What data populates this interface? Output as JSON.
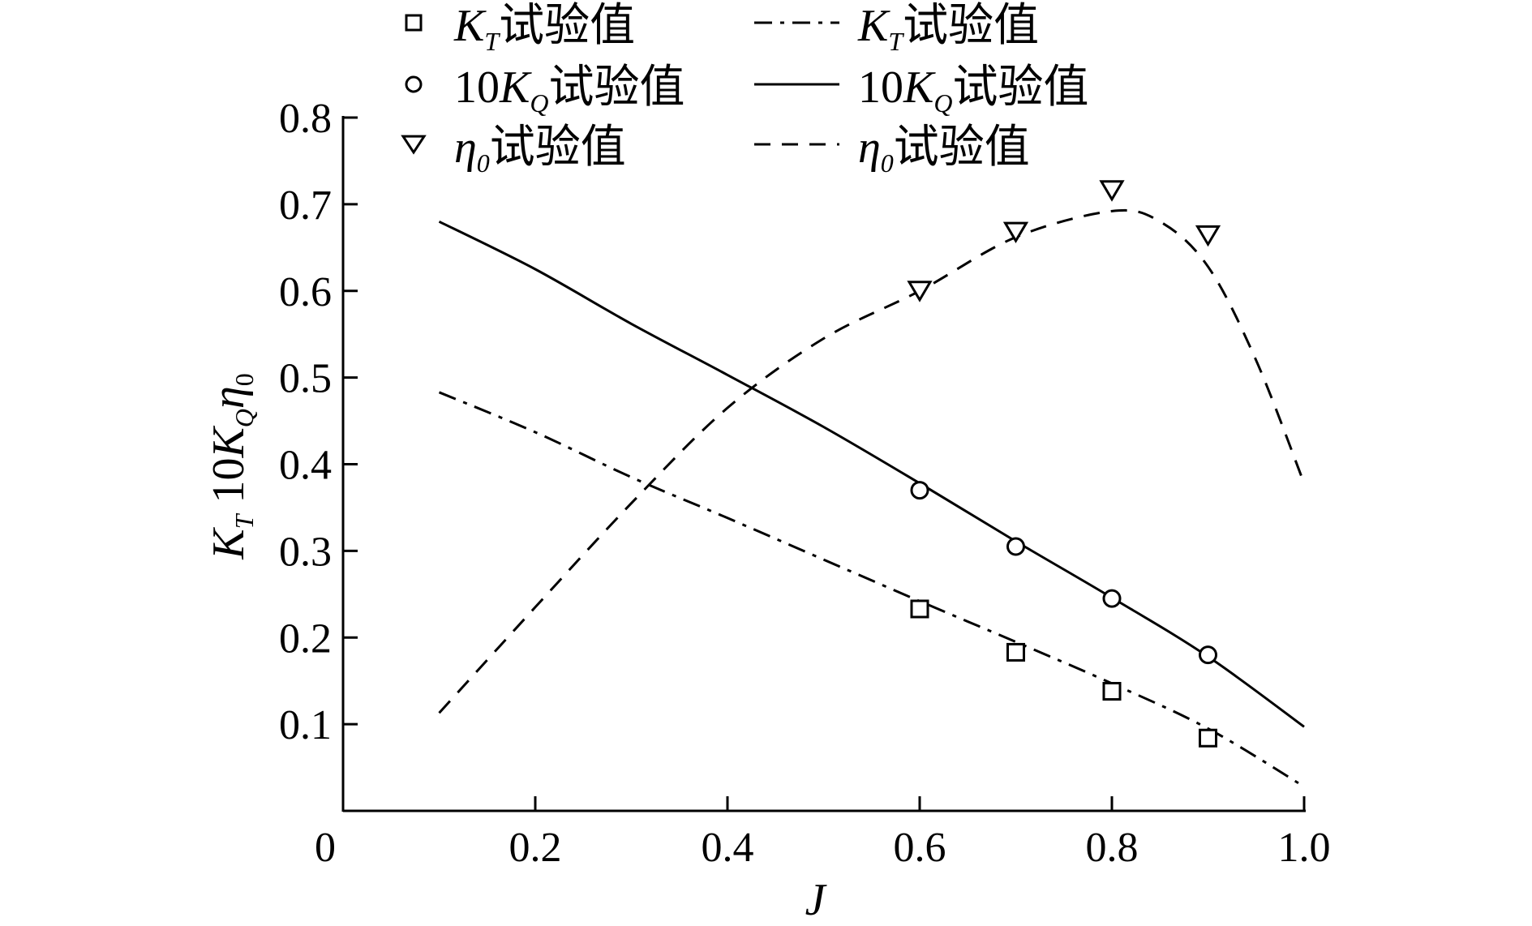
{
  "chart_data": {
    "type": "line",
    "xlabel": "J",
    "ylabel": "K_T 10K_Q η0",
    "xlim": [
      0,
      1.0
    ],
    "ylim": [
      0,
      0.8
    ],
    "x_ticks": [
      0,
      0.2,
      0.4,
      0.6,
      0.8,
      1.0
    ],
    "x_tick_labels": [
      "0",
      "0.2",
      "0.4",
      "0.6",
      "0.8",
      "1.0"
    ],
    "y_ticks": [
      0.1,
      0.2,
      0.3,
      0.4,
      0.5,
      0.6,
      0.7,
      0.8
    ],
    "y_tick_labels": [
      "0.1",
      "0.2",
      "0.3",
      "0.4",
      "0.5",
      "0.6",
      "0.7",
      "0.8"
    ],
    "grid": false,
    "legend_position": "top",
    "series": [
      {
        "name": "K_T试验值",
        "style": "markers",
        "marker": "square",
        "x": [
          0.6,
          0.7,
          0.8,
          0.9
        ],
        "y": [
          0.233,
          0.183,
          0.138,
          0.084
        ]
      },
      {
        "name": "10K_Q试验值",
        "style": "markers",
        "marker": "circle",
        "x": [
          0.6,
          0.7,
          0.8,
          0.9
        ],
        "y": [
          0.37,
          0.305,
          0.245,
          0.18
        ]
      },
      {
        "name": "η0试验值",
        "style": "markers",
        "marker": "triangle-down",
        "x": [
          0.6,
          0.7,
          0.8,
          0.9
        ],
        "y": [
          0.6,
          0.668,
          0.716,
          0.664
        ]
      },
      {
        "name": "K_T试验值",
        "style": "dash-dot",
        "x": [
          0.1,
          0.2,
          0.3,
          0.4,
          0.5,
          0.6,
          0.7,
          0.8,
          0.9,
          1.0
        ],
        "y": [
          0.483,
          0.437,
          0.385,
          0.338,
          0.29,
          0.242,
          0.195,
          0.147,
          0.095,
          0.028
        ]
      },
      {
        "name": "10K_Q试验值",
        "style": "solid",
        "x": [
          0.1,
          0.2,
          0.3,
          0.4,
          0.5,
          0.6,
          0.7,
          0.8,
          0.9,
          1.0
        ],
        "y": [
          0.68,
          0.625,
          0.562,
          0.503,
          0.443,
          0.378,
          0.311,
          0.246,
          0.178,
          0.097
        ]
      },
      {
        "name": "η0试验值",
        "style": "dashed",
        "x": [
          0.1,
          0.2,
          0.3,
          0.4,
          0.5,
          0.6,
          0.7,
          0.8,
          0.85,
          0.9,
          0.95,
          1.0
        ],
        "y": [
          0.113,
          0.235,
          0.355,
          0.465,
          0.545,
          0.6,
          0.662,
          0.692,
          0.68,
          0.628,
          0.52,
          0.378
        ]
      }
    ],
    "legend": [
      {
        "marker": "square",
        "base": "K",
        "sub": "T",
        "suffix": "试验值",
        "prefix": ""
      },
      {
        "marker": "circle",
        "base": "K",
        "sub": "Q",
        "suffix": "试验值",
        "prefix": "10"
      },
      {
        "marker": "triangle-down",
        "base": "η",
        "sub": "0",
        "suffix": "试验值",
        "prefix": ""
      },
      {
        "line": "dash-dot",
        "base": "K",
        "sub": "T",
        "suffix": "试验值",
        "prefix": ""
      },
      {
        "line": "solid",
        "base": "K",
        "sub": "Q",
        "suffix": "试验值",
        "prefix": "10"
      },
      {
        "line": "dashed",
        "base": "η",
        "sub": "0",
        "suffix": "试验值",
        "prefix": ""
      }
    ]
  }
}
